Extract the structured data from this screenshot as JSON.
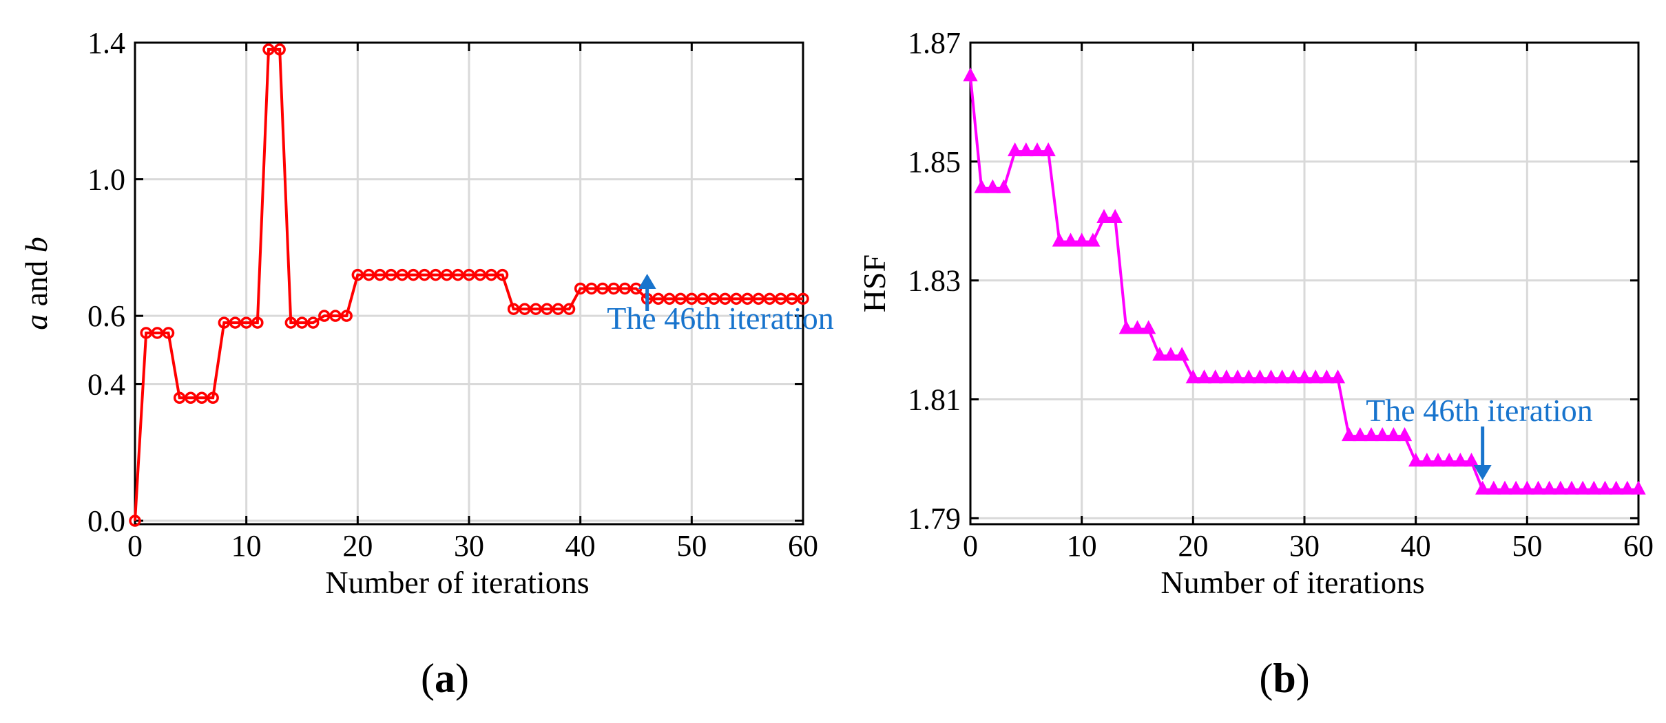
{
  "chart_data": [
    {
      "type": "line",
      "panel_label_open": "(",
      "panel_label_letter": "a",
      "panel_label_close": ")",
      "xlabel": "Number of iterations",
      "ylabel_var_a": "a",
      "ylabel_and": " and ",
      "ylabel_var_b": "b",
      "xlim": [
        0,
        60
      ],
      "ylim": [
        0.0,
        1.4
      ],
      "y_axis_min": -0.01,
      "xticks": [
        0,
        10,
        20,
        30,
        40,
        50,
        60
      ],
      "xtick_labels": [
        "0",
        "10",
        "20",
        "30",
        "40",
        "50",
        "60"
      ],
      "yticks": [
        0.0,
        0.4,
        0.6,
        1.0,
        1.4
      ],
      "ytick_labels": [
        "0.0",
        "0.4",
        "0.6",
        "1.0",
        "1.4"
      ],
      "grid": true,
      "series": [
        {
          "name": "a and b",
          "color": "#ff0000",
          "marker": "circle",
          "x": [
            0,
            1,
            2,
            3,
            4,
            5,
            6,
            7,
            8,
            9,
            10,
            11,
            12,
            13,
            14,
            15,
            16,
            17,
            18,
            19,
            20,
            21,
            22,
            23,
            24,
            25,
            26,
            27,
            28,
            29,
            30,
            31,
            32,
            33,
            34,
            35,
            36,
            37,
            38,
            39,
            40,
            41,
            42,
            43,
            44,
            45,
            46,
            47,
            48,
            49,
            50,
            51,
            52,
            53,
            54,
            55,
            56,
            57,
            58,
            59,
            60
          ],
          "values": [
            0.0,
            0.55,
            0.55,
            0.55,
            0.36,
            0.36,
            0.36,
            0.36,
            0.58,
            0.58,
            0.58,
            0.58,
            1.38,
            1.38,
            0.58,
            0.58,
            0.58,
            0.6,
            0.6,
            0.6,
            0.72,
            0.72,
            0.72,
            0.72,
            0.72,
            0.72,
            0.72,
            0.72,
            0.72,
            0.72,
            0.72,
            0.72,
            0.72,
            0.72,
            0.62,
            0.62,
            0.62,
            0.62,
            0.62,
            0.62,
            0.68,
            0.68,
            0.68,
            0.68,
            0.68,
            0.68,
            0.65,
            0.65,
            0.65,
            0.65,
            0.65,
            0.65,
            0.65,
            0.65,
            0.65,
            0.65,
            0.65,
            0.65,
            0.65,
            0.65,
            0.65
          ]
        }
      ],
      "annotation": {
        "text": "The 46th iteration",
        "color": "#1874cd",
        "x": 46,
        "y": 0.65,
        "arrow_direction": "up"
      }
    },
    {
      "type": "line",
      "panel_label_open": "(",
      "panel_label_letter": "b",
      "panel_label_close": ")",
      "xlabel": "Number of iterations",
      "ylabel": "HSF",
      "xlim": [
        0,
        60
      ],
      "ylim": [
        1.79,
        1.87
      ],
      "y_axis_min": 1.789,
      "xticks": [
        0,
        10,
        20,
        30,
        40,
        50,
        60
      ],
      "xtick_labels": [
        "0",
        "10",
        "20",
        "30",
        "40",
        "50",
        "60"
      ],
      "yticks": [
        1.79,
        1.81,
        1.83,
        1.85,
        1.87
      ],
      "ytick_labels": [
        "1.79",
        "1.81",
        "1.83",
        "1.85",
        "1.87"
      ],
      "grid": true,
      "series": [
        {
          "name": "HSF",
          "color": "#ff00ff",
          "marker": "triangle",
          "x": [
            0,
            1,
            2,
            3,
            4,
            5,
            6,
            7,
            8,
            9,
            10,
            11,
            12,
            13,
            14,
            15,
            16,
            17,
            18,
            19,
            20,
            21,
            22,
            23,
            24,
            25,
            26,
            27,
            28,
            29,
            30,
            31,
            32,
            33,
            34,
            35,
            36,
            37,
            38,
            39,
            40,
            41,
            42,
            43,
            44,
            45,
            46,
            47,
            48,
            49,
            50,
            51,
            52,
            53,
            54,
            55,
            56,
            57,
            58,
            59,
            60
          ],
          "values": [
            1.8643,
            1.8455,
            1.8455,
            1.8455,
            1.8517,
            1.8517,
            1.8517,
            1.8517,
            1.8365,
            1.8365,
            1.8365,
            1.8365,
            1.8405,
            1.8405,
            1.8218,
            1.8218,
            1.8218,
            1.8173,
            1.8173,
            1.8173,
            1.8135,
            1.8135,
            1.8135,
            1.8135,
            1.8135,
            1.8135,
            1.8135,
            1.8135,
            1.8135,
            1.8135,
            1.8135,
            1.8135,
            1.8135,
            1.8135,
            1.8038,
            1.8038,
            1.8038,
            1.8038,
            1.8038,
            1.8038,
            1.7995,
            1.7995,
            1.7995,
            1.7995,
            1.7995,
            1.7995,
            1.7948,
            1.7948,
            1.7948,
            1.7948,
            1.7948,
            1.7948,
            1.7948,
            1.7948,
            1.7948,
            1.7948,
            1.7948,
            1.7948,
            1.7948,
            1.7948,
            1.7948
          ]
        }
      ],
      "annotation": {
        "text": "The 46th iteration",
        "color": "#1874cd",
        "x": 46,
        "y": 1.7948,
        "arrow_direction": "down"
      }
    }
  ]
}
